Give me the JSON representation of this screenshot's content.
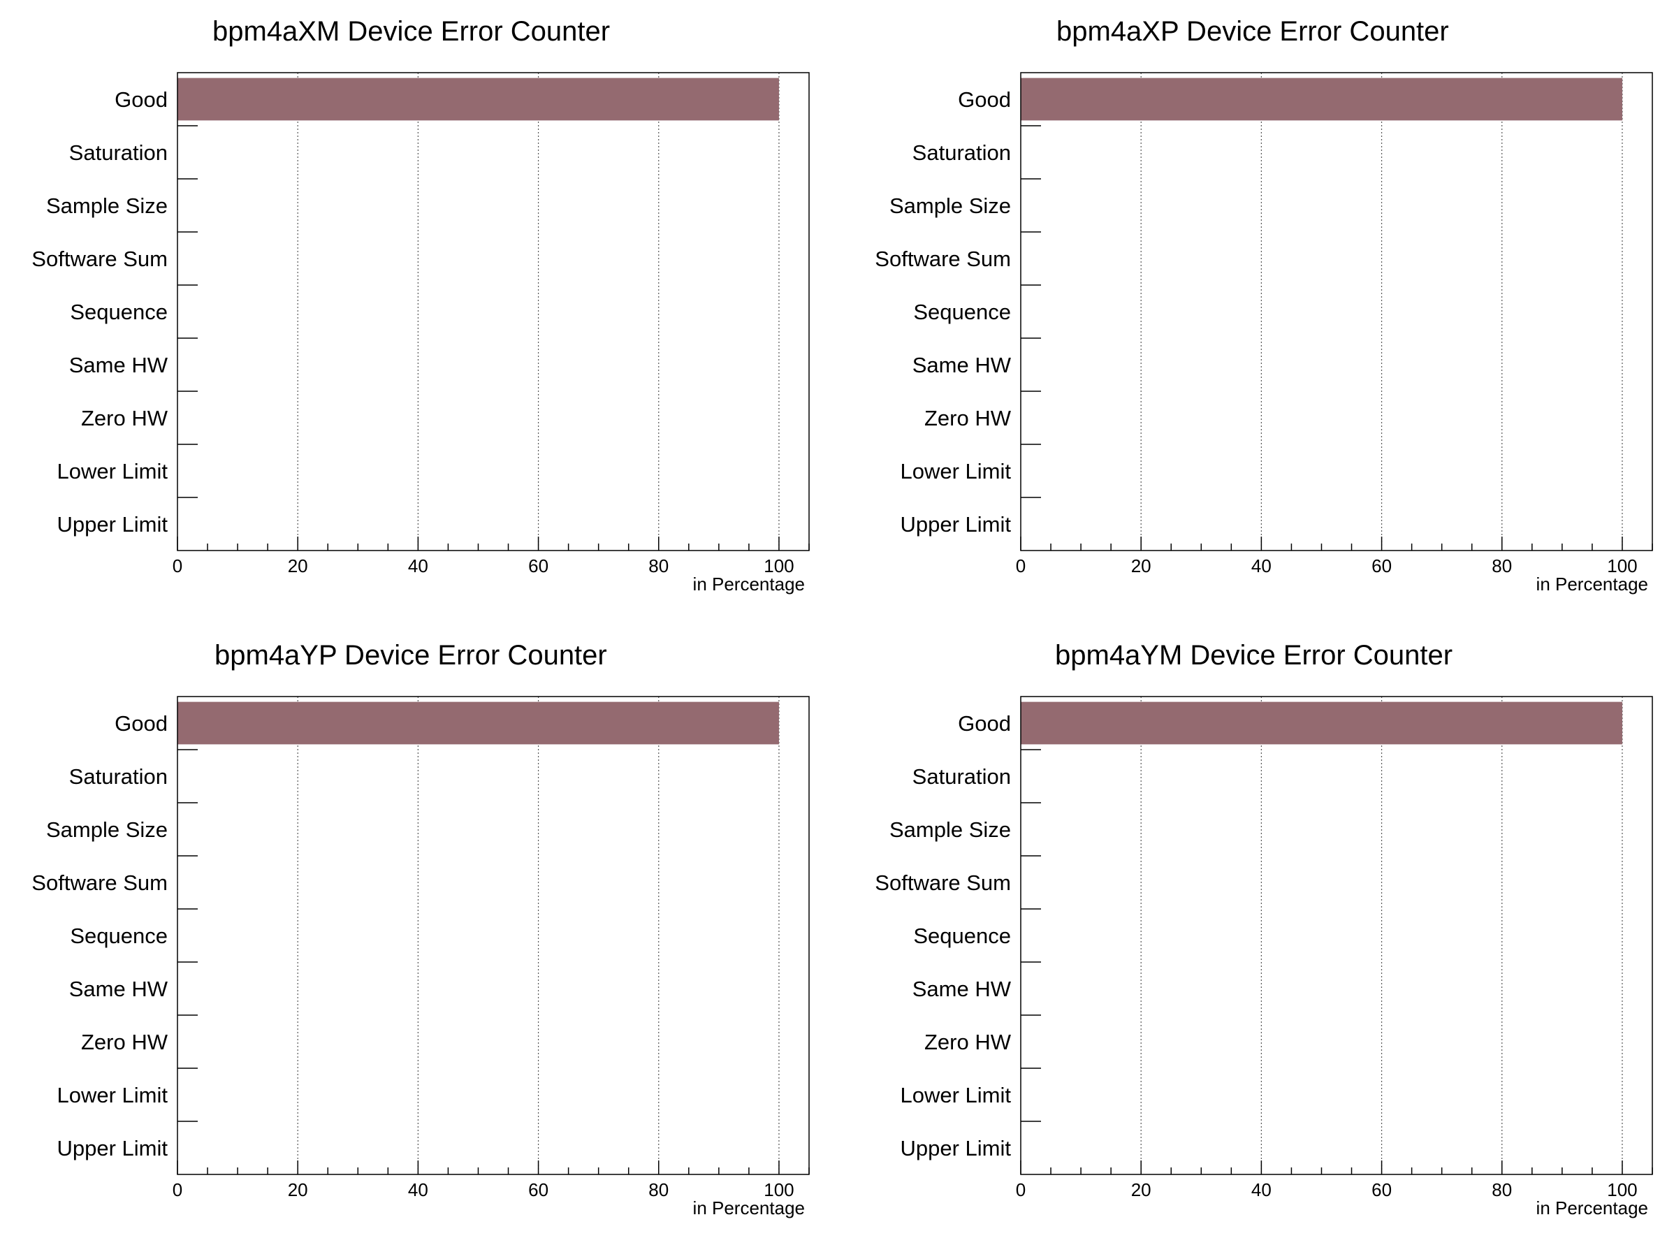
{
  "colors": {
    "bar": "#946a70",
    "frame": "#000000",
    "grid": "#555555"
  },
  "chart_data": [
    {
      "type": "bar",
      "orientation": "horizontal",
      "title": "bpm4aXM Device  Error Counter",
      "categories": [
        "Good",
        "Saturation",
        "Sample Size",
        "Software Sum",
        "Sequence",
        "Same HW",
        "Zero HW",
        "Lower Limit",
        "Upper Limit"
      ],
      "values": [
        100,
        0,
        0,
        0,
        0,
        0,
        0,
        0,
        0
      ],
      "xlabel": "in Percentage",
      "xlim": [
        0,
        105
      ],
      "xticks": [
        0,
        20,
        40,
        60,
        80,
        100
      ],
      "grid": "vertical"
    },
    {
      "type": "bar",
      "orientation": "horizontal",
      "title": "bpm4aXP Device  Error Counter",
      "categories": [
        "Good",
        "Saturation",
        "Sample Size",
        "Software Sum",
        "Sequence",
        "Same HW",
        "Zero HW",
        "Lower Limit",
        "Upper Limit"
      ],
      "values": [
        100,
        0,
        0,
        0,
        0,
        0,
        0,
        0,
        0
      ],
      "xlabel": "in Percentage",
      "xlim": [
        0,
        105
      ],
      "xticks": [
        0,
        20,
        40,
        60,
        80,
        100
      ],
      "grid": "vertical"
    },
    {
      "type": "bar",
      "orientation": "horizontal",
      "title": "bpm4aYP Device  Error Counter",
      "categories": [
        "Good",
        "Saturation",
        "Sample Size",
        "Software Sum",
        "Sequence",
        "Same HW",
        "Zero HW",
        "Lower Limit",
        "Upper Limit"
      ],
      "values": [
        100,
        0,
        0,
        0,
        0,
        0,
        0,
        0,
        0
      ],
      "xlabel": "in Percentage",
      "xlim": [
        0,
        105
      ],
      "xticks": [
        0,
        20,
        40,
        60,
        80,
        100
      ],
      "grid": "vertical"
    },
    {
      "type": "bar",
      "orientation": "horizontal",
      "title": "bpm4aYM Device  Error Counter",
      "categories": [
        "Good",
        "Saturation",
        "Sample Size",
        "Software Sum",
        "Sequence",
        "Same HW",
        "Zero HW",
        "Lower Limit",
        "Upper Limit"
      ],
      "values": [
        100,
        0,
        0,
        0,
        0,
        0,
        0,
        0,
        0
      ],
      "xlabel": "in Percentage",
      "xlim": [
        0,
        105
      ],
      "xticks": [
        0,
        20,
        40,
        60,
        80,
        100
      ],
      "grid": "vertical"
    }
  ]
}
